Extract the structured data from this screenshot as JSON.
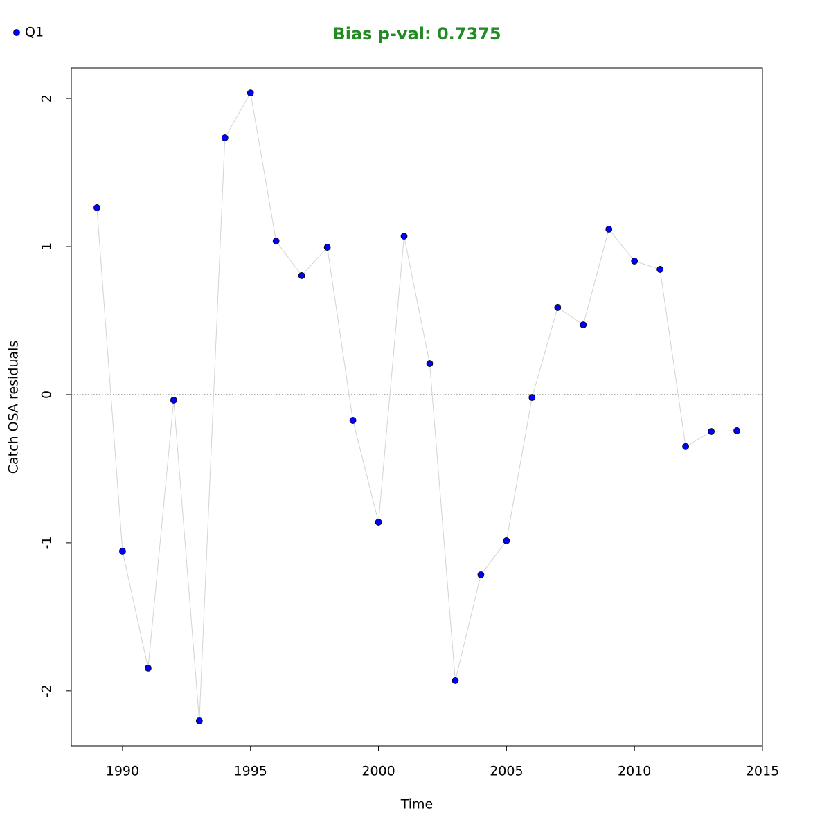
{
  "chart_data": {
    "type": "line",
    "title": "Bias p-val: 0.7375",
    "title_color": "#228b22",
    "x_label": "Time",
    "y_label": "Catch OSA residuals",
    "x": [
      1989,
      1990,
      1991,
      1992,
      1993,
      1994,
      1995,
      1996,
      1997,
      1998,
      1999,
      2000,
      2001,
      2002,
      2003,
      2004,
      2005,
      2006,
      2007,
      2008,
      2009,
      2010,
      2011,
      2012,
      2013,
      2014
    ],
    "series": [
      {
        "name": "Q1",
        "color": "#0000ff",
        "line_color": "#d3d3d3",
        "values": [
          1.262,
          -1.056,
          -1.846,
          -0.037,
          -2.201,
          1.734,
          2.037,
          1.037,
          0.804,
          0.995,
          -0.173,
          -0.86,
          1.07,
          0.21,
          -1.93,
          -1.215,
          -0.986,
          -0.019,
          0.589,
          0.472,
          1.117,
          0.902,
          0.846,
          -0.35,
          -0.248,
          -0.243
        ]
      }
    ],
    "xlim": [
      1988,
      2015
    ],
    "xticks": [
      1990,
      1995,
      2000,
      2005,
      2010,
      2015
    ],
    "ylim": [
      -2.37,
      2.206
    ],
    "yticks": [
      -2,
      -1,
      0,
      1,
      2
    ],
    "reference_line": 0,
    "legend": "top-left"
  }
}
